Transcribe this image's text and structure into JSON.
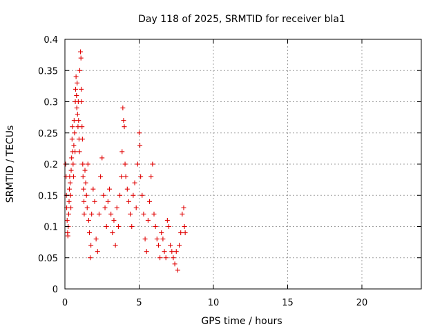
{
  "chart_data": {
    "type": "scatter",
    "title": "Day 118 of 2025, SRMTID for receiver bla1",
    "xlabel": "GPS time / hours",
    "ylabel": "SRMTID / TECUs",
    "xlim": [
      0,
      24
    ],
    "ylim": [
      0,
      0.4
    ],
    "xticks": [
      0,
      5,
      10,
      15,
      20
    ],
    "xtick_labels": [
      "0",
      "5",
      "10",
      "15",
      "20"
    ],
    "yticks": [
      0,
      0.05,
      0.1,
      0.15,
      0.2,
      0.25,
      0.3,
      0.35,
      0.4
    ],
    "ytick_labels": [
      "0",
      "0.05",
      "0.1",
      "0.15",
      "0.2",
      "0.25",
      "0.3",
      "0.35",
      "0.4"
    ],
    "grid": true,
    "marker": "plus",
    "color": "#e00000",
    "series": [
      {
        "name": "SRMTID",
        "points": [
          [
            0.05,
            0.2
          ],
          [
            0.08,
            0.18
          ],
          [
            0.1,
            0.15
          ],
          [
            0.12,
            0.13
          ],
          [
            0.15,
            0.11
          ],
          [
            0.18,
            0.09
          ],
          [
            0.2,
            0.085
          ],
          [
            0.22,
            0.1
          ],
          [
            0.25,
            0.12
          ],
          [
            0.28,
            0.14
          ],
          [
            0.3,
            0.16
          ],
          [
            0.32,
            0.18
          ],
          [
            0.35,
            0.17
          ],
          [
            0.38,
            0.15
          ],
          [
            0.4,
            0.13
          ],
          [
            0.42,
            0.19
          ],
          [
            0.45,
            0.21
          ],
          [
            0.48,
            0.24
          ],
          [
            0.5,
            0.26
          ],
          [
            0.52,
            0.22
          ],
          [
            0.55,
            0.2
          ],
          [
            0.58,
            0.18
          ],
          [
            0.6,
            0.23
          ],
          [
            0.62,
            0.27
          ],
          [
            0.65,
            0.25
          ],
          [
            0.68,
            0.22
          ],
          [
            0.7,
            0.3
          ],
          [
            0.72,
            0.32
          ],
          [
            0.75,
            0.34
          ],
          [
            0.78,
            0.31
          ],
          [
            0.8,
            0.29
          ],
          [
            0.82,
            0.33
          ],
          [
            0.85,
            0.28
          ],
          [
            0.88,
            0.26
          ],
          [
            0.9,
            0.3
          ],
          [
            0.92,
            0.27
          ],
          [
            0.95,
            0.24
          ],
          [
            0.98,
            0.22
          ],
          [
            1.0,
            0.35
          ],
          [
            1.05,
            0.38
          ],
          [
            1.08,
            0.37
          ],
          [
            1.1,
            0.32
          ],
          [
            1.12,
            0.3
          ],
          [
            1.15,
            0.26
          ],
          [
            1.18,
            0.24
          ],
          [
            1.2,
            0.2
          ],
          [
            1.22,
            0.18
          ],
          [
            1.25,
            0.16
          ],
          [
            1.28,
            0.14
          ],
          [
            1.3,
            0.12
          ],
          [
            1.35,
            0.19
          ],
          [
            1.4,
            0.17
          ],
          [
            1.45,
            0.15
          ],
          [
            1.5,
            0.13
          ],
          [
            1.55,
            0.2
          ],
          [
            1.6,
            0.11
          ],
          [
            1.65,
            0.09
          ],
          [
            1.7,
            0.05
          ],
          [
            1.75,
            0.07
          ],
          [
            1.8,
            0.12
          ],
          [
            1.9,
            0.16
          ],
          [
            2.0,
            0.14
          ],
          [
            2.1,
            0.08
          ],
          [
            2.2,
            0.06
          ],
          [
            2.3,
            0.12
          ],
          [
            2.4,
            0.18
          ],
          [
            2.5,
            0.21
          ],
          [
            2.6,
            0.15
          ],
          [
            2.7,
            0.13
          ],
          [
            2.8,
            0.1
          ],
          [
            2.9,
            0.14
          ],
          [
            3.0,
            0.16
          ],
          [
            3.1,
            0.12
          ],
          [
            3.2,
            0.09
          ],
          [
            3.3,
            0.11
          ],
          [
            3.4,
            0.07
          ],
          [
            3.5,
            0.13
          ],
          [
            3.6,
            0.1
          ],
          [
            3.7,
            0.15
          ],
          [
            3.8,
            0.18
          ],
          [
            3.85,
            0.22
          ],
          [
            3.9,
            0.29
          ],
          [
            3.95,
            0.27
          ],
          [
            4.0,
            0.26
          ],
          [
            4.05,
            0.2
          ],
          [
            4.1,
            0.18
          ],
          [
            4.2,
            0.16
          ],
          [
            4.3,
            0.14
          ],
          [
            4.4,
            0.12
          ],
          [
            4.5,
            0.1
          ],
          [
            4.6,
            0.15
          ],
          [
            4.7,
            0.17
          ],
          [
            4.8,
            0.13
          ],
          [
            4.9,
            0.2
          ],
          [
            5.0,
            0.25
          ],
          [
            5.05,
            0.23
          ],
          [
            5.1,
            0.18
          ],
          [
            5.2,
            0.15
          ],
          [
            5.3,
            0.12
          ],
          [
            5.4,
            0.08
          ],
          [
            5.5,
            0.06
          ],
          [
            5.6,
            0.11
          ],
          [
            5.7,
            0.14
          ],
          [
            5.8,
            0.18
          ],
          [
            5.9,
            0.2
          ],
          [
            6.0,
            0.12
          ],
          [
            6.1,
            0.1
          ],
          [
            6.2,
            0.08
          ],
          [
            6.3,
            0.07
          ],
          [
            6.4,
            0.05
          ],
          [
            6.5,
            0.09
          ],
          [
            6.6,
            0.08
          ],
          [
            6.7,
            0.06
          ],
          [
            6.8,
            0.05
          ],
          [
            6.9,
            0.11
          ],
          [
            7.0,
            0.1
          ],
          [
            7.1,
            0.07
          ],
          [
            7.2,
            0.06
          ],
          [
            7.3,
            0.05
          ],
          [
            7.4,
            0.04
          ],
          [
            7.5,
            0.06
          ],
          [
            7.6,
            0.03
          ],
          [
            7.7,
            0.07
          ],
          [
            7.8,
            0.09
          ],
          [
            7.9,
            0.12
          ],
          [
            8.0,
            0.13
          ],
          [
            8.05,
            0.1
          ],
          [
            8.1,
            0.09
          ]
        ]
      }
    ]
  }
}
